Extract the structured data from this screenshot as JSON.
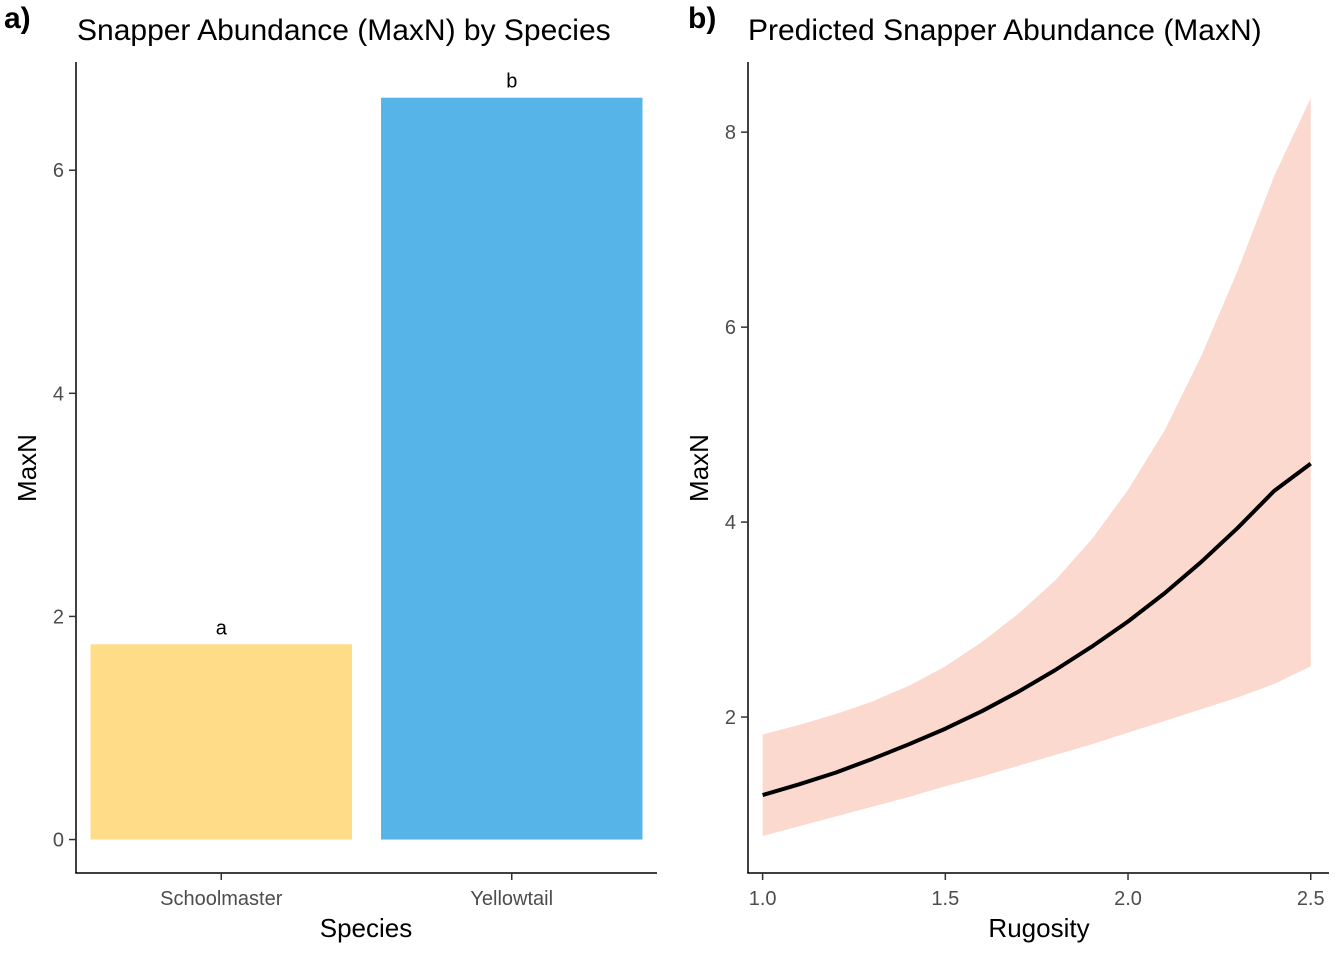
{
  "chart_data": [
    {
      "panel": "a)",
      "type": "bar",
      "title": "Snapper Abundance (MaxN) by Species",
      "xlabel": "Species",
      "ylabel": "MaxN",
      "categories": [
        "Schoolmaster",
        "Yellowtail"
      ],
      "values": [
        1.75,
        6.65
      ],
      "bar_labels": [
        "a",
        "b"
      ],
      "colors": [
        "#FFDD88",
        "#56B4E9"
      ],
      "ylim": [
        -0.3,
        6.97
      ],
      "yticks": [
        0,
        2,
        4,
        6
      ],
      "grid": false,
      "legend": "none"
    },
    {
      "panel": "b)",
      "type": "line",
      "title": "Predicted Snapper Abundance (MaxN)",
      "xlabel": "Rugosity",
      "ylabel": "MaxN",
      "xlim": [
        0.96,
        2.55
      ],
      "ylim": [
        0.4,
        8.72
      ],
      "xticks": [
        1.0,
        1.5,
        2.0,
        2.5
      ],
      "xtick_labels": [
        "1.0",
        "1.5",
        "2.0",
        "2.5"
      ],
      "yticks": [
        2,
        4,
        6,
        8
      ],
      "line_color": "#000000",
      "ribbon_color": "#FCD9CE",
      "grid": false,
      "legend": "none",
      "x": [
        1.0,
        1.1,
        1.2,
        1.3,
        1.4,
        1.5,
        1.6,
        1.7,
        1.8,
        1.9,
        2.0,
        2.1,
        2.2,
        2.3,
        2.4,
        2.5
      ],
      "y": [
        1.2,
        1.31,
        1.43,
        1.57,
        1.72,
        1.88,
        2.06,
        2.26,
        2.48,
        2.72,
        2.98,
        3.27,
        3.59,
        3.94,
        4.32,
        4.6
      ],
      "ymin": [
        0.78,
        0.88,
        0.98,
        1.08,
        1.18,
        1.29,
        1.39,
        1.5,
        1.61,
        1.72,
        1.84,
        1.96,
        2.08,
        2.2,
        2.34,
        2.52
      ],
      "ymax": [
        1.82,
        1.92,
        2.03,
        2.16,
        2.32,
        2.52,
        2.77,
        3.06,
        3.4,
        3.82,
        4.33,
        4.94,
        5.7,
        6.58,
        7.55,
        8.35
      ]
    }
  ]
}
